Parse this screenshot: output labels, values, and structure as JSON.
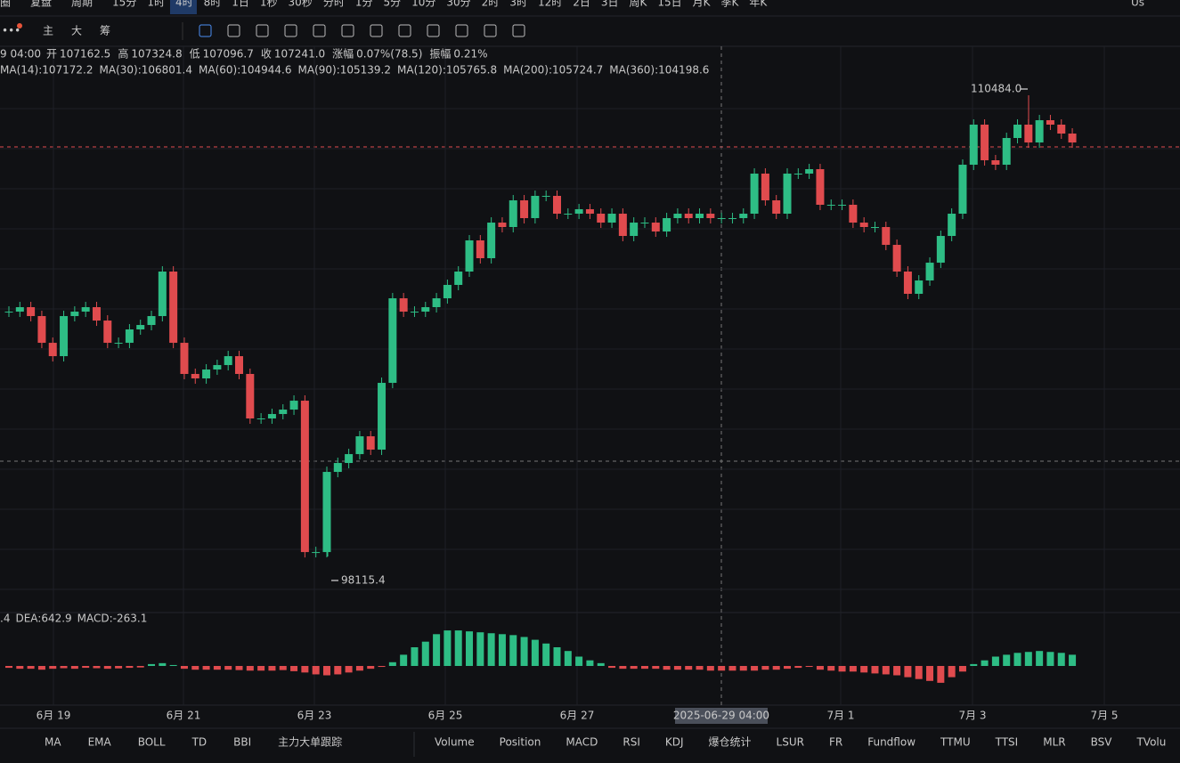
{
  "top_bar": {
    "items": [
      "圈",
      "复盘",
      "周期",
      "15分",
      "1时",
      "4时",
      "8时",
      "1日",
      "1秒",
      "30秒",
      "分时",
      "1分",
      "5分",
      "10分",
      "30分",
      "2时",
      "3时",
      "12时",
      "2日",
      "3日",
      "周K",
      "15日",
      "月K",
      "季K",
      "年K"
    ],
    "active": "4时",
    "right": "Us"
  },
  "tool_bar": {
    "items": [
      "主",
      "大",
      "筹"
    ]
  },
  "info_line": {
    "time": "9 04:00",
    "items": [
      {
        "label": "开",
        "value": "107162.5"
      },
      {
        "label": "高",
        "value": "107324.8"
      },
      {
        "label": "低",
        "value": "107096.7"
      },
      {
        "label": "收",
        "value": "107241.0"
      },
      {
        "label": "涨幅",
        "value": "0.07%(78.5)"
      },
      {
        "label": "振幅",
        "value": "0.21%"
      }
    ]
  },
  "ma_legend": [
    {
      "text": "MA(14):107172.2",
      "color": "#e6df4a"
    },
    {
      "text": "MA(30):106801.4",
      "color": "#df4fc4"
    },
    {
      "text": "MA(60):104944.6",
      "color": "#3c9fe0"
    },
    {
      "text": "MA(90):105139.2",
      "color": "#cfe08a"
    },
    {
      "text": "MA(120):105765.8",
      "color": "#f08a8a"
    },
    {
      "text": "MA(200):105724.7",
      "color": "#35cfe0"
    },
    {
      "text": "MA(360):104198.6",
      "color": "#f0761e"
    }
  ],
  "chart_data": {
    "type": "candlestick",
    "closes": [
      104681,
      104801,
      104562,
      103845,
      103487,
      104562,
      104681,
      104801,
      104442,
      103845,
      103845,
      104204,
      104323,
      104562,
      105756,
      103845,
      103010,
      102890,
      103129,
      103248,
      103487,
      103010,
      101816,
      101816,
      101935,
      102054,
      102293,
      98233,
      98233,
      100383,
      100622,
      100860,
      101338,
      100980,
      102771,
      105039,
      104681,
      104681,
      104801,
      105039,
      105398,
      105756,
      106592,
      106114,
      107069,
      106950,
      107666,
      107189,
      107786,
      107786,
      107308,
      107308,
      107428,
      107308,
      107069,
      107308,
      106711,
      107069,
      107069,
      106830,
      107189,
      107308,
      107189,
      107308,
      107189,
      107189,
      107189,
      107308,
      108383,
      107666,
      107308,
      108383,
      108383,
      108502,
      107547,
      107547,
      107547,
      107069,
      106950,
      106950,
      106472,
      105756,
      105159,
      105517,
      105994,
      106711,
      107308,
      108621,
      109696,
      108741,
      108621,
      109338,
      109696,
      109218,
      109815,
      109696,
      109457,
      109218
    ],
    "high_label": {
      "value": 110484.0,
      "label": "110484.0"
    },
    "low_label": {
      "value": 98115.4,
      "label": "98115.4"
    },
    "up_color": "#2ebd85",
    "down_color": "#e04b4e",
    "x_labels": [
      "6月 19",
      "6月 21",
      "6月 23",
      "6月 25",
      "6月 27",
      "2025-06-29 04:00",
      "7月 1",
      "7月 3",
      "7月 5"
    ],
    "macd_legend": [
      {
        "text": ".4",
        "color": "#d6d6d6"
      },
      {
        "text": "DEA:642.9",
        "color": "#e6df4a"
      },
      {
        "text": "MACD:-263.1",
        "color": "#e04b4e"
      }
    ],
    "macd_hist": [
      -100,
      -150,
      -150,
      -200,
      -150,
      -120,
      -150,
      -100,
      -120,
      -150,
      -130,
      -100,
      -80,
      100,
      150,
      50,
      -150,
      -200,
      -200,
      -200,
      -200,
      -220,
      -250,
      -250,
      -250,
      -220,
      -280,
      -350,
      -450,
      -500,
      -450,
      -350,
      -250,
      -150,
      -50,
      200,
      600,
      1000,
      1300,
      1700,
      1900,
      1900,
      1850,
      1800,
      1750,
      1700,
      1650,
      1550,
      1400,
      1200,
      1000,
      800,
      500,
      300,
      150,
      -100,
      -150,
      -150,
      -150,
      -150,
      -200,
      -200,
      -200,
      -200,
      -250,
      -250,
      -250,
      -250,
      -250,
      -200,
      -200,
      -150,
      -100,
      -50,
      -200,
      -250,
      -300,
      -300,
      -350,
      -400,
      -450,
      -500,
      -600,
      -700,
      -800,
      -900,
      -600,
      -300,
      100,
      300,
      500,
      600,
      700,
      750,
      800,
      750,
      700,
      600
    ]
  },
  "bottom_bar": {
    "left": [
      "MA",
      "EMA",
      "BOLL",
      "TD",
      "BBI",
      "主力大单跟踪"
    ],
    "right": [
      "Volume",
      "Position",
      "MACD",
      "RSI",
      "KDJ",
      "爆仓统计",
      "LSUR",
      "FR",
      "Fundflow",
      "TTMU",
      "TTSI",
      "MLR",
      "BSV",
      "TVolu"
    ],
    "active": [
      "MA",
      "MACD"
    ]
  }
}
